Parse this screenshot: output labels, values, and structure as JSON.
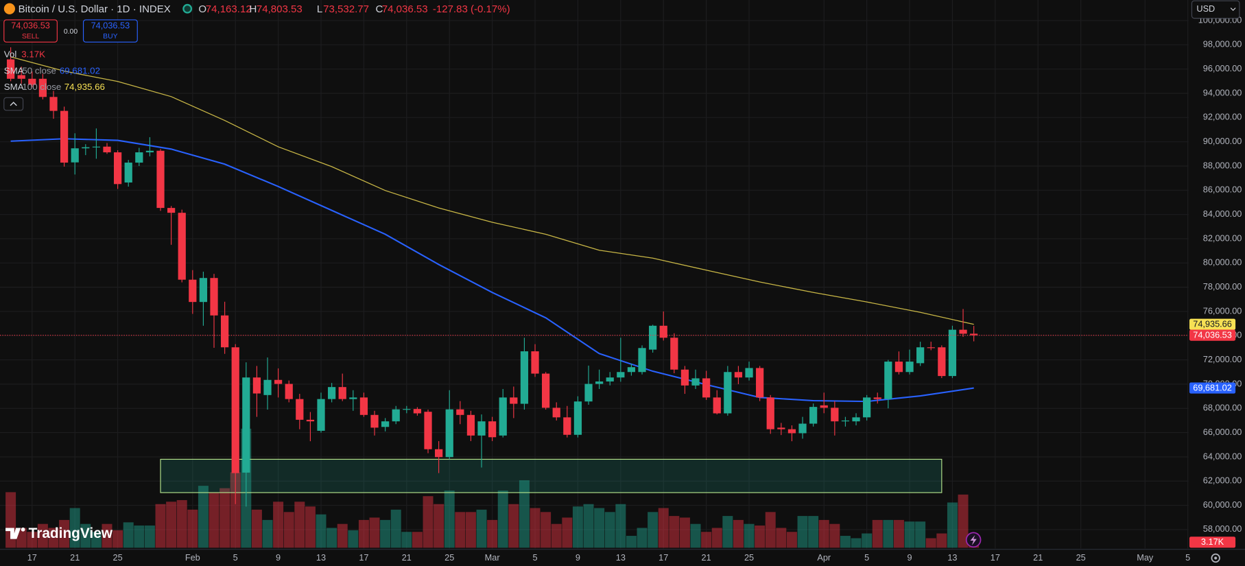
{
  "header": {
    "symbol": "Bitcoin / U.S. Dollar · 1D · INDEX",
    "open_label": "O",
    "open": "74,163.12",
    "high_label": "H",
    "high": "74,803.53",
    "low_label": "L",
    "low": "73,532.77",
    "close_label": "C",
    "close": "74,036.53",
    "change": "-127.83 (-0.17%)"
  },
  "trade": {
    "sell_price": "74,036.53",
    "sell": "SELL",
    "spread": "0.00",
    "buy_price": "74,036.53",
    "buy": "BUY"
  },
  "currency": "USD",
  "brand": "TradingView",
  "chart_data": {
    "type": "candlestick",
    "x": [
      "01-15",
      "01-16",
      "01-17",
      "01-18",
      "01-19",
      "01-20",
      "01-21",
      "01-22",
      "01-23",
      "01-24",
      "01-25",
      "01-26",
      "01-27",
      "01-28",
      "01-29",
      "01-30",
      "01-31",
      "02-01",
      "02-02",
      "02-03",
      "02-04",
      "02-05",
      "02-06",
      "02-07",
      "02-08",
      "02-09",
      "02-10",
      "02-11",
      "02-12",
      "02-13",
      "02-14",
      "02-15",
      "02-16",
      "02-17",
      "02-18",
      "02-19",
      "02-20",
      "02-21",
      "02-22",
      "02-23",
      "02-24",
      "02-25",
      "02-26",
      "02-27",
      "02-28",
      "03-01",
      "03-02",
      "03-03",
      "03-04",
      "03-05",
      "03-06",
      "03-07",
      "03-08",
      "03-09",
      "03-10",
      "03-11",
      "03-12",
      "03-13",
      "03-14",
      "03-15",
      "03-16",
      "03-17",
      "03-18",
      "03-19",
      "03-20",
      "03-21",
      "03-22",
      "03-23",
      "03-24",
      "03-25",
      "03-26",
      "03-27",
      "03-28",
      "03-29",
      "03-30",
      "03-31",
      "04-01",
      "04-02",
      "04-03",
      "04-04",
      "04-05",
      "04-06",
      "04-07",
      "04-08",
      "04-09",
      "04-10",
      "04-11",
      "04-12",
      "04-13",
      "04-14",
      "04-15"
    ],
    "open": [
      96800,
      95500,
      95200,
      95200,
      93700,
      92550,
      88300,
      89460,
      89550,
      89600,
      89130,
      86640,
      88280,
      89130,
      89260,
      84540,
      84140,
      78620,
      76780,
      78760,
      75670,
      73040,
      62700,
      70550,
      69100,
      70350,
      70020,
      68770,
      67060,
      66150,
      68770,
      69760,
      68770,
      68900,
      67460,
      66470,
      66930,
      67920,
      67950,
      67720,
      64630,
      63980,
      67920,
      67460,
      65760,
      66930,
      65760,
      68900,
      68380,
      72710,
      70870,
      68050,
      67260,
      65820,
      68570,
      70020,
      70220,
      70550,
      71000,
      71000,
      72850,
      74820,
      73830,
      71200,
      69890,
      70480,
      68900,
      67590,
      71000,
      70550,
      71330,
      68900,
      66410,
      66280,
      65950,
      66740,
      68250,
      68050,
      66930,
      66930,
      67260,
      68900,
      68770,
      71860,
      71000,
      71730,
      73040,
      73040,
      70670,
      74490,
      74163.12
    ],
    "high": [
      97800,
      96200,
      95800,
      95600,
      94200,
      92900,
      90700,
      89800,
      91100,
      89900,
      89300,
      88500,
      89500,
      90380,
      89400,
      84700,
      84400,
      79410,
      79280,
      79100,
      76800,
      73300,
      71800,
      71500,
      72200,
      71300,
      70300,
      69200,
      67700,
      69300,
      70100,
      70870,
      69500,
      69300,
      67800,
      67200,
      68200,
      68200,
      68100,
      67900,
      65300,
      69500,
      68600,
      67800,
      67500,
      67300,
      69600,
      69800,
      73830,
      73300,
      71000,
      68500,
      68200,
      69000,
      71530,
      71200,
      71000,
      73830,
      71700,
      73200,
      74900,
      76000,
      74200,
      71500,
      71200,
      71100,
      69500,
      71500,
      71500,
      71860,
      71500,
      69100,
      66800,
      66600,
      67300,
      68400,
      69300,
      68600,
      67300,
      67600,
      69100,
      69300,
      72000,
      72700,
      72850,
      73500,
      73500,
      73200,
      74820,
      76200,
      74803.53
    ],
    "low": [
      95000,
      94800,
      94500,
      93500,
      91900,
      87950,
      87300,
      88900,
      88600,
      89000,
      86110,
      86300,
      88000,
      88800,
      84300,
      81500,
      78400,
      75800,
      74820,
      73000,
      72500,
      60100,
      59900,
      67300,
      67900,
      68900,
      68500,
      66280,
      65290,
      66000,
      68500,
      68600,
      67800,
      67300,
      65760,
      66100,
      66700,
      67600,
      67400,
      64300,
      62660,
      63800,
      66700,
      65300,
      63120,
      65300,
      65600,
      67200,
      67900,
      70600,
      67900,
      67000,
      65600,
      65600,
      68300,
      69600,
      69900,
      70200,
      70700,
      70800,
      72600,
      73600,
      70900,
      69200,
      69600,
      68700,
      67500,
      67400,
      70000,
      70300,
      68600,
      65900,
      65800,
      65290,
      65500,
      66500,
      67600,
      65760,
      66500,
      66600,
      67000,
      68400,
      68000,
      70800,
      70800,
      71500,
      72800,
      70500,
      70500,
      73900,
      73532.77
    ],
    "close": [
      95200,
      95200,
      94700,
      93700,
      92550,
      88280,
      89460,
      89550,
      89600,
      89130,
      86510,
      88280,
      89130,
      89260,
      84540,
      84140,
      78620,
      76780,
      78760,
      75670,
      73040,
      62660,
      70550,
      69230,
      70350,
      70020,
      68770,
      67060,
      66930,
      68770,
      69760,
      68770,
      68900,
      67460,
      66410,
      66930,
      67920,
      67950,
      67590,
      64630,
      63980,
      67920,
      67460,
      65760,
      66930,
      65620,
      68900,
      68380,
      72710,
      70870,
      68050,
      67260,
      65820,
      68570,
      70020,
      70220,
      70550,
      71000,
      71400,
      72980,
      74820,
      73830,
      71200,
      69890,
      70480,
      68900,
      67590,
      71000,
      70550,
      71330,
      68900,
      66280,
      66280,
      65950,
      66740,
      68120,
      68050,
      66930,
      67000,
      67260,
      68900,
      68770,
      71860,
      71000,
      71860,
      73040,
      72980,
      70670,
      74490,
      74160,
      74036.53
    ],
    "up_color": "#22ab94",
    "down_color": "#f23645",
    "last_price_label": "74,036.53",
    "volume": {
      "name": "Vol",
      "values": [
        70,
        25,
        20,
        30,
        25,
        35,
        50,
        30,
        20,
        30,
        22,
        32,
        28,
        28,
        55,
        58,
        60,
        48,
        78,
        70,
        75,
        95,
        150,
        48,
        35,
        58,
        45,
        58,
        52,
        42,
        25,
        30,
        22,
        35,
        38,
        35,
        48,
        20,
        20,
        65,
        55,
        72,
        45,
        45,
        48,
        35,
        72,
        55,
        85,
        50,
        45,
        30,
        38,
        52,
        55,
        50,
        45,
        55,
        15,
        25,
        45,
        50,
        40,
        38,
        30,
        20,
        25,
        40,
        35,
        30,
        28,
        45,
        25,
        20,
        40,
        40,
        35,
        30,
        15,
        12,
        18,
        35,
        35,
        35,
        33,
        33,
        12,
        18,
        57,
        67,
        3.17
      ],
      "last_label": "3.17K",
      "ylim": [
        0,
        400
      ]
    },
    "series": [
      {
        "name": "SMA",
        "params": "50 close",
        "color": "#2962ff",
        "x": [
          "01-15",
          "01-20",
          "01-25",
          "01-30",
          "02-04",
          "02-09",
          "02-14",
          "02-19",
          "02-24",
          "03-01",
          "03-06",
          "03-11",
          "03-16",
          "03-21",
          "03-26",
          "03-31",
          "04-05",
          "04-10",
          "04-15"
        ],
        "values": [
          90050,
          90250,
          90120,
          89400,
          88150,
          86310,
          84340,
          82370,
          79870,
          77570,
          75470,
          72520,
          71070,
          69960,
          68900,
          68640,
          68570,
          69030,
          69681.02
        ],
        "last_label": "69,681.02"
      },
      {
        "name": "SMA",
        "params": "100 close",
        "color": "#f7e154",
        "x": [
          "01-15",
          "01-20",
          "01-25",
          "01-30",
          "02-04",
          "02-09",
          "02-14",
          "02-19",
          "02-24",
          "03-01",
          "03-06",
          "03-11",
          "03-16",
          "03-21",
          "03-26",
          "03-31",
          "04-05",
          "04-10",
          "04-15"
        ],
        "values": [
          97010,
          95830,
          94980,
          93730,
          91760,
          89590,
          87950,
          85980,
          84540,
          83360,
          82370,
          81050,
          80400,
          79410,
          78430,
          77570,
          76780,
          75930,
          74935.66
        ],
        "last_label": "74,935.66"
      }
    ],
    "zone": {
      "x": [
        "01-29",
        "04-12"
      ],
      "y": [
        61050,
        63800
      ],
      "color": "#22ab94",
      "border": "#b5e48c"
    },
    "xlim": [
      "01-14",
      "05-05"
    ],
    "ylim": [
      56500,
      101700
    ],
    "xticks": [
      {
        "value": "01-17",
        "label": "17"
      },
      {
        "value": "01-21",
        "label": "21"
      },
      {
        "value": "01-25",
        "label": "25"
      },
      {
        "value": "02-01",
        "label": "Feb"
      },
      {
        "value": "02-05",
        "label": "5"
      },
      {
        "value": "02-09",
        "label": "9"
      },
      {
        "value": "02-13",
        "label": "13"
      },
      {
        "value": "02-17",
        "label": "17"
      },
      {
        "value": "02-21",
        "label": "21"
      },
      {
        "value": "02-25",
        "label": "25"
      },
      {
        "value": "03-01",
        "label": "Mar"
      },
      {
        "value": "03-05",
        "label": "5"
      },
      {
        "value": "03-09",
        "label": "9"
      },
      {
        "value": "03-13",
        "label": "13"
      },
      {
        "value": "03-17",
        "label": "17"
      },
      {
        "value": "03-21",
        "label": "21"
      },
      {
        "value": "03-25",
        "label": "25"
      },
      {
        "value": "04-01",
        "label": "Apr"
      },
      {
        "value": "04-05",
        "label": "5"
      },
      {
        "value": "04-09",
        "label": "9"
      },
      {
        "value": "04-13",
        "label": "13"
      },
      {
        "value": "04-17",
        "label": "17"
      },
      {
        "value": "04-21",
        "label": "21"
      },
      {
        "value": "04-25",
        "label": "25"
      },
      {
        "value": "05-01",
        "label": "May"
      },
      {
        "value": "05-05",
        "label": "5"
      }
    ],
    "yticks": [
      {
        "value": 58000,
        "label": "58,000.00"
      },
      {
        "value": 60000,
        "label": "60,000.00"
      },
      {
        "value": 62000,
        "label": "62,000.00"
      },
      {
        "value": 64000,
        "label": "64,000.00"
      },
      {
        "value": 66000,
        "label": "66,000.00"
      },
      {
        "value": 68000,
        "label": "68,000.00"
      },
      {
        "value": 70000,
        "label": "70,000.00"
      },
      {
        "value": 72000,
        "label": "72,000.00"
      },
      {
        "value": 74000,
        "label": "74,000.00"
      },
      {
        "value": 76000,
        "label": "76,000.00"
      },
      {
        "value": 78000,
        "label": "78,000.00"
      },
      {
        "value": 80000,
        "label": "80,000.00"
      },
      {
        "value": 82000,
        "label": "82,000.00"
      },
      {
        "value": 84000,
        "label": "84,000.00"
      },
      {
        "value": 86000,
        "label": "86,000.00"
      },
      {
        "value": 88000,
        "label": "88,000.00"
      },
      {
        "value": 90000,
        "label": "90,000.00"
      },
      {
        "value": 92000,
        "label": "92,000.00"
      },
      {
        "value": 94000,
        "label": "94,000.00"
      },
      {
        "value": 96000,
        "label": "96,000.00"
      },
      {
        "value": 98000,
        "label": "98,000.00"
      },
      {
        "value": 100000,
        "label": "100,000.00"
      }
    ],
    "grid": true
  }
}
